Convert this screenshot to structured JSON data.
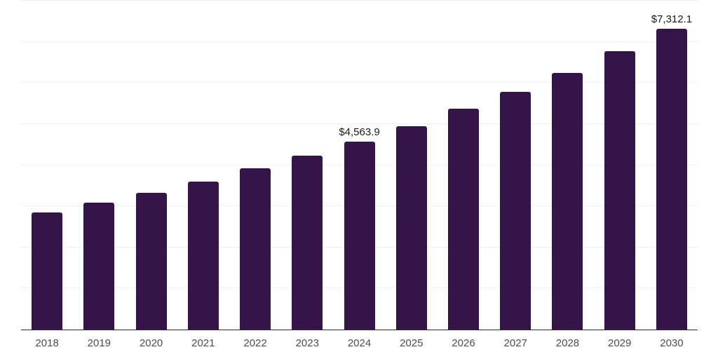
{
  "chart_data": {
    "type": "bar",
    "title": "",
    "xlabel": "",
    "ylabel": "",
    "categories": [
      "2018",
      "2019",
      "2020",
      "2021",
      "2022",
      "2023",
      "2024",
      "2025",
      "2026",
      "2027",
      "2028",
      "2029",
      "2030"
    ],
    "values": [
      2845,
      3085,
      3335,
      3600,
      3920,
      4225,
      4563.9,
      4950,
      5365,
      5785,
      6245,
      6765,
      7312.1
    ],
    "data_labels": [
      "",
      "",
      "",
      "",
      "",
      "",
      "$4,563.9",
      "",
      "",
      "",
      "",
      "",
      "$7,312.1"
    ],
    "ylim": [
      0,
      8000
    ],
    "grid_step": 1000,
    "grid": true,
    "legend": "none",
    "colors": {
      "bar": "#351449",
      "grid_line": "#efefef",
      "axis_line": "#2b2b2b",
      "tick_label": "#4d4d4d",
      "data_label": "#1a1a1a",
      "background": "#ffffff"
    }
  }
}
